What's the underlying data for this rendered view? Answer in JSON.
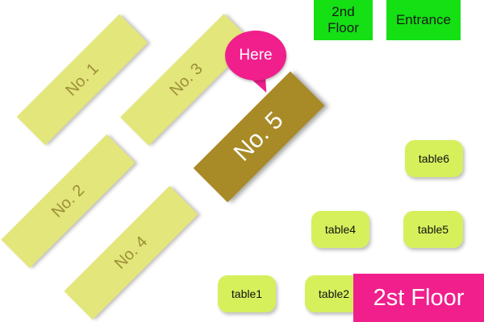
{
  "map": {
    "shelves": [
      {
        "id": "1",
        "label": "No. 1"
      },
      {
        "id": "3",
        "label": "No. 3"
      },
      {
        "id": "5",
        "label": "No. 5"
      },
      {
        "id": "2",
        "label": "No. 2"
      },
      {
        "id": "4",
        "label": "No. 4"
      }
    ],
    "current_location": "Here",
    "nav": {
      "second_floor": "2nd\nFloor",
      "entrance": "Entrance"
    },
    "tables": [
      "table6",
      "table4",
      "table5",
      "table1",
      "table2"
    ],
    "floor_label": "2st Floor"
  },
  "colors": {
    "shelf": "#e3e67a",
    "shelf_current": "#a88a26",
    "marker": "#f01f8c",
    "nav": "#14e014",
    "table": "#d6f05c"
  }
}
